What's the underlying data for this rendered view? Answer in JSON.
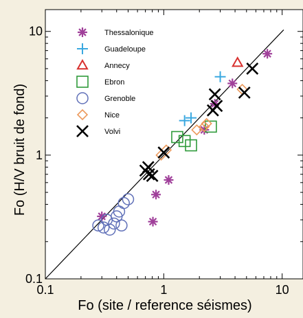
{
  "chart_data": {
    "type": "scatter",
    "xlabel": "Fo (site / reference séismes)",
    "ylabel": "Fo (H/V bruit de fond)",
    "xscale": "log",
    "yscale": "log",
    "xlim": [
      0.1,
      15
    ],
    "ylim": [
      0.1,
      15
    ],
    "x_ticks": [
      {
        "value": 0.1,
        "label": "0.1"
      },
      {
        "value": 1,
        "label": "1"
      },
      {
        "value": 10,
        "label": "10"
      }
    ],
    "y_ticks": [
      {
        "value": 0.1,
        "label": "0.1"
      },
      {
        "value": 1,
        "label": "1"
      },
      {
        "value": 10,
        "label": "10"
      }
    ],
    "reference_line": "y = x",
    "legend_position": "top-left",
    "series": [
      {
        "name": "Thessalonique",
        "marker": "asterisk",
        "color": "#a0409a",
        "points": [
          [
            0.3,
            0.32
          ],
          [
            0.81,
            0.29
          ],
          [
            0.86,
            0.48
          ],
          [
            1.1,
            0.63
          ],
          [
            2.2,
            1.6
          ],
          [
            2.7,
            2.6
          ],
          [
            3.8,
            3.8
          ],
          [
            7.5,
            6.6
          ]
        ]
      },
      {
        "name": "Guadeloupe",
        "marker": "plus",
        "color": "#3aa8e0",
        "points": [
          [
            1.5,
            1.9
          ],
          [
            1.7,
            2.0
          ],
          [
            3.0,
            4.3
          ]
        ]
      },
      {
        "name": "Annecy",
        "marker": "triangle",
        "color": "#d8302e",
        "points": [
          [
            4.2,
            5.6
          ]
        ]
      },
      {
        "name": "Ebron",
        "marker": "square",
        "color": "#2e9a3a",
        "points": [
          [
            1.3,
            1.4
          ],
          [
            1.5,
            1.3
          ],
          [
            1.7,
            1.2
          ],
          [
            2.5,
            1.7
          ]
        ]
      },
      {
        "name": "Grenoble",
        "marker": "circle",
        "color": "#6070b8",
        "points": [
          [
            0.28,
            0.27
          ],
          [
            0.31,
            0.26
          ],
          [
            0.33,
            0.3
          ],
          [
            0.35,
            0.25
          ],
          [
            0.38,
            0.28
          ],
          [
            0.4,
            0.32
          ],
          [
            0.44,
            0.27
          ],
          [
            0.46,
            0.41
          ],
          [
            0.5,
            0.44
          ],
          [
            0.42,
            0.35
          ]
        ]
      },
      {
        "name": "Nice",
        "marker": "diamond",
        "color": "#ec9a5c",
        "points": [
          [
            0.95,
            1.0
          ],
          [
            1.05,
            1.1
          ],
          [
            1.9,
            1.6
          ],
          [
            2.2,
            1.7
          ],
          [
            2.3,
            1.8
          ],
          [
            4.6,
            3.4
          ]
        ]
      },
      {
        "name": "Volvi",
        "marker": "x",
        "color": "#000000",
        "points": [
          [
            0.7,
            0.75
          ],
          [
            0.75,
            0.7
          ],
          [
            0.8,
            0.68
          ],
          [
            0.74,
            0.8
          ],
          [
            1.0,
            1.05
          ],
          [
            2.6,
            2.3
          ],
          [
            2.7,
            3.1
          ],
          [
            2.8,
            2.5
          ],
          [
            4.8,
            3.2
          ],
          [
            5.6,
            5.0
          ]
        ]
      }
    ]
  }
}
